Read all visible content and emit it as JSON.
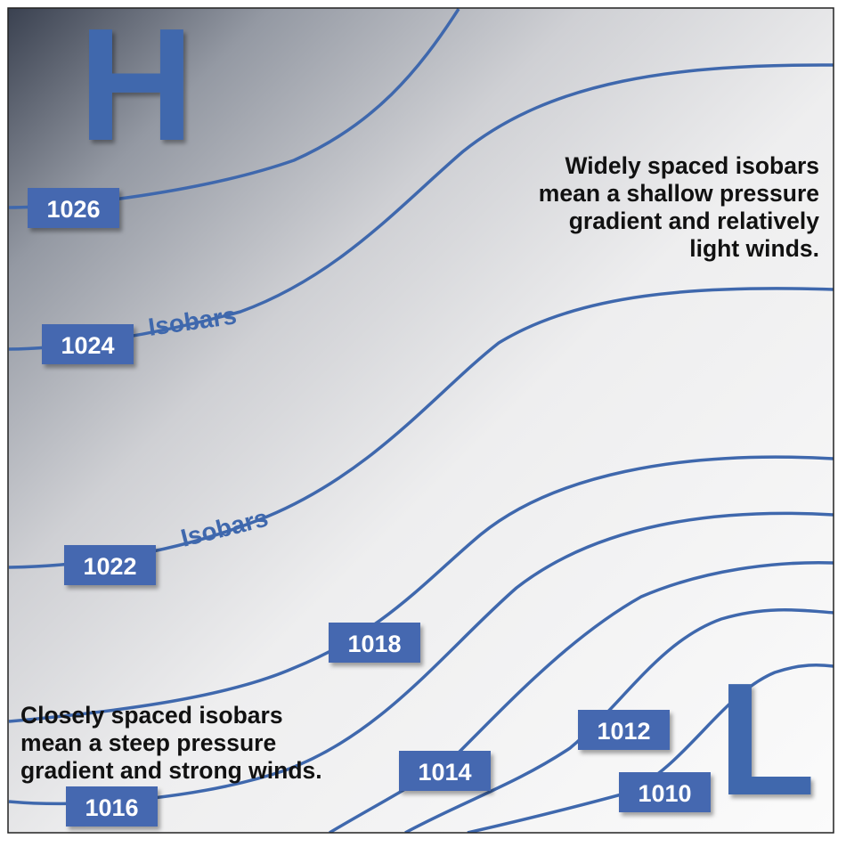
{
  "map": {
    "high_label": "H",
    "low_label": "L",
    "line_color": "#3f68ad",
    "badge_color": "#4468b0"
  },
  "isobars": [
    {
      "pressure": "1026"
    },
    {
      "pressure": "1024"
    },
    {
      "pressure": "1022"
    },
    {
      "pressure": "1018"
    },
    {
      "pressure": "1016"
    },
    {
      "pressure": "1014"
    },
    {
      "pressure": "1012"
    },
    {
      "pressure": "1010"
    }
  ],
  "curve_labels": [
    "Isobars",
    "Isobars"
  ],
  "notes": {
    "wide": [
      "Widely spaced isobars",
      "mean a shallow pressure",
      "gradient and relatively",
      "light winds."
    ],
    "close": [
      "Closely spaced isobars",
      "mean a steep pressure",
      "gradient and strong winds."
    ]
  }
}
